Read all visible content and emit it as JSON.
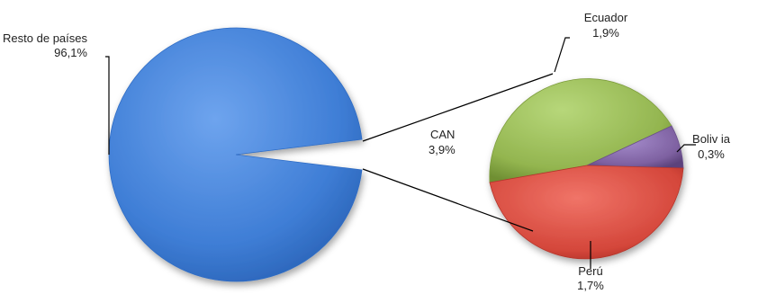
{
  "chart_data": [
    {
      "type": "pie",
      "slices": [
        {
          "label": "Resto de países",
          "value_text": "96,1%",
          "value": 96.1,
          "color": "#4a86d8"
        },
        {
          "label": "CAN",
          "value_text": "3,9%",
          "value": 3.9,
          "color": "#ffffff"
        }
      ]
    },
    {
      "type": "pie",
      "slices": [
        {
          "label": "Ecuador",
          "value_text": "1,9%",
          "value": 1.9,
          "color": "#9bbb59"
        },
        {
          "label": "Boliv ia",
          "value_text": "0,3%",
          "value": 0.3,
          "color": "#8064a2"
        },
        {
          "label": "Perú",
          "value_text": "1,7%",
          "value": 1.7,
          "color": "#d9463c"
        }
      ]
    }
  ]
}
